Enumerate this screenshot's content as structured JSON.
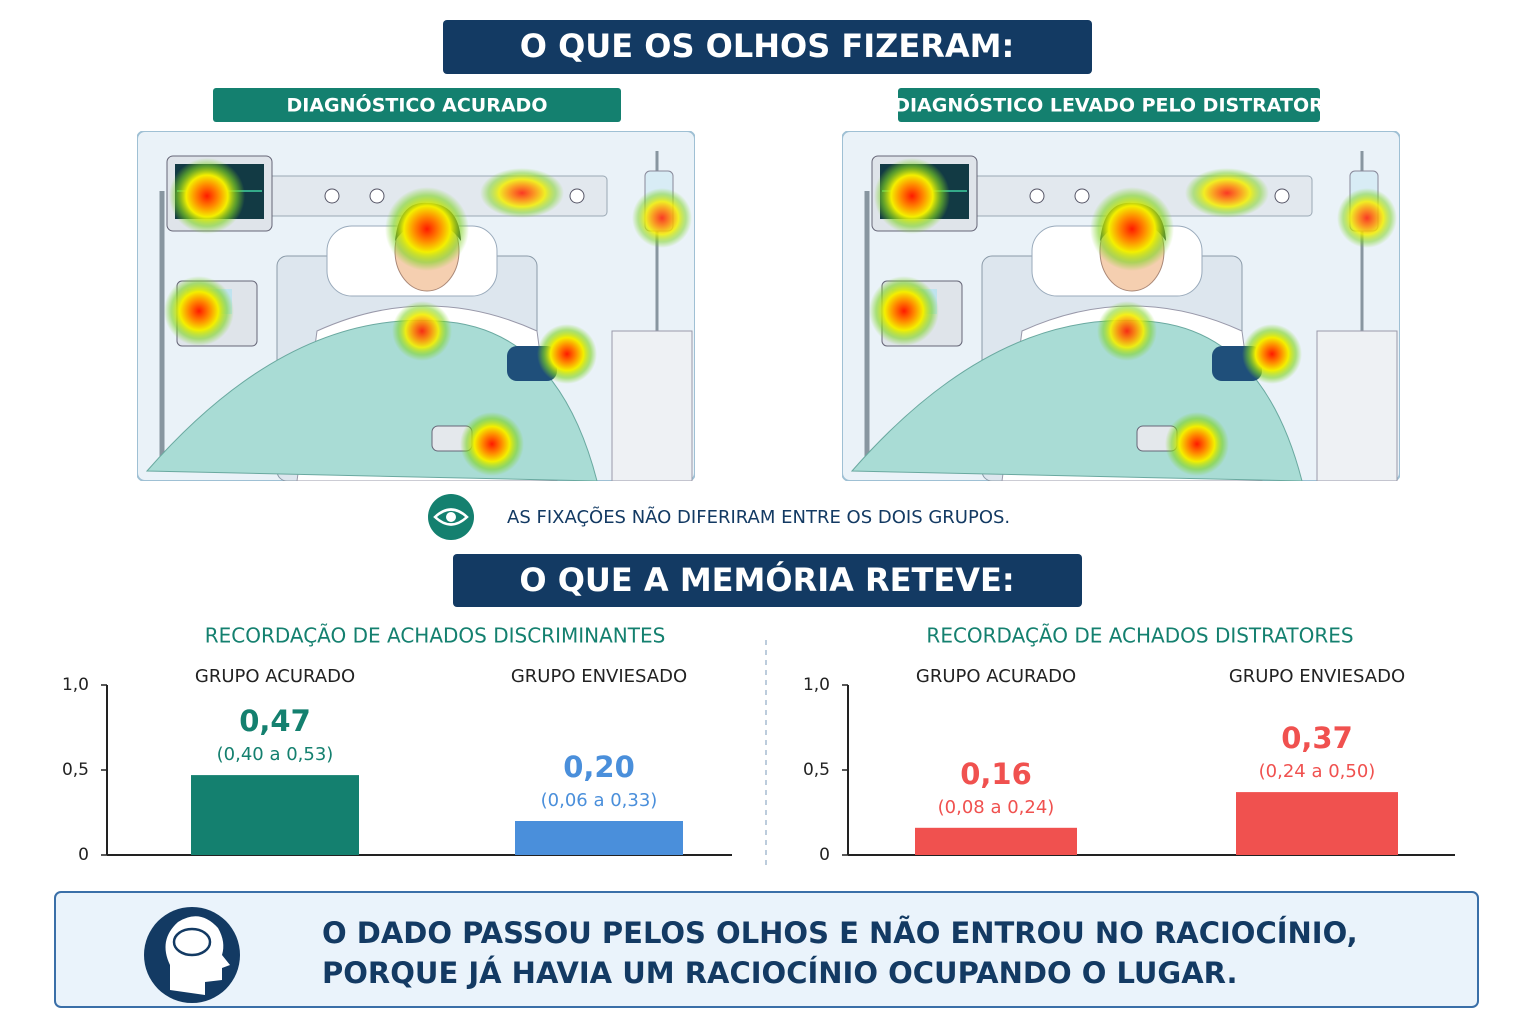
{
  "header": {
    "title": "O QUE OS OLHOS FIZERAM:"
  },
  "panels": [
    {
      "label": "DIAGNÓSTICO ACURADO"
    },
    {
      "label": "DIAGNÓSTICO LEVADO PELO DISTRATOR"
    }
  ],
  "note": "AS FIXAÇÕES NÃO DIFERIRAM ENTRE OS DOIS GRUPOS.",
  "section": {
    "title": "O QUE A MEMÓRIA RETEVE:"
  },
  "chart_data": [
    {
      "type": "bar",
      "title": "RECORDAÇÃO DE ACHADOS DISCRIMINANTES",
      "categories": [
        "GRUPO ACURADO",
        "GRUPO ENVIESADO"
      ],
      "values": [
        0.47,
        0.2
      ],
      "value_labels": [
        "0,47",
        "0,20"
      ],
      "interval_labels": [
        "(0,40 a 0,53)",
        "(0,06 a 0,33)"
      ],
      "colors": [
        "#14806f",
        "#4a8fdb"
      ],
      "title_color": "#14806f",
      "ylim": [
        0,
        1
      ],
      "yticks": [
        0,
        {
          "value": 0.5,
          "label": "0,5"
        },
        {
          "value": 1,
          "label": "1,0"
        }
      ]
    },
    {
      "type": "bar",
      "title": "RECORDAÇÃO DE ACHADOS DISTRATORES",
      "categories": [
        "GRUPO ACURADO",
        "GRUPO ENVIESADO"
      ],
      "values": [
        0.16,
        0.37
      ],
      "value_labels": [
        "0,16",
        "0,37"
      ],
      "interval_labels": [
        "(0,08 a 0,24)",
        "(0,24 a 0,50)"
      ],
      "colors": [
        "#f0514f",
        "#f0514f"
      ],
      "title_color": "#14806f",
      "ylim": [
        0,
        1
      ],
      "yticks": [
        0,
        {
          "value": 0.5,
          "label": "0,5"
        },
        {
          "value": 1,
          "label": "1,0"
        }
      ]
    }
  ],
  "footer": {
    "lines": [
      "O DADO PASSOU PELOS OLHOS E NÃO ENTROU NO RACIOCÍNIO,",
      "PORQUE JÁ HAVIA UM RACIOCÍNIO OCUPANDO O LUGAR."
    ]
  }
}
